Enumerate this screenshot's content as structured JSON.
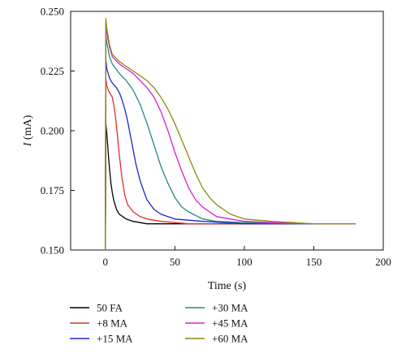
{
  "chart_data": {
    "type": "line",
    "xlabel": "Time (s)",
    "ylabel_italic": "I",
    "ylabel_unit": " (mA)",
    "xlim": [
      -25,
      200
    ],
    "ylim": [
      0.15,
      0.25
    ],
    "x_ticks": [
      0,
      50,
      100,
      150,
      200
    ],
    "y_ticks": [
      0.15,
      0.175,
      0.2,
      0.225,
      0.25
    ],
    "x_tick_labels": [
      "0",
      "50",
      "100",
      "150",
      "200"
    ],
    "y_tick_labels": [
      "0.150",
      "0.175",
      "0.200",
      "0.225",
      "0.250"
    ],
    "grid": false,
    "legend_position": "below plot",
    "series": [
      {
        "name": "50 FA",
        "color": "#000000",
        "x": [
          0,
          0.3,
          1,
          2,
          3,
          4,
          5,
          6,
          8,
          10,
          15,
          20,
          30,
          50,
          80,
          120,
          160
        ],
        "y": [
          0.15,
          0.203,
          0.199,
          0.191,
          0.184,
          0.178,
          0.174,
          0.171,
          0.167,
          0.165,
          0.163,
          0.162,
          0.161,
          0.161,
          0.161,
          0.161,
          0.161
        ]
      },
      {
        "name": "+8 MA",
        "color": "#e0302a",
        "x": [
          0,
          0.3,
          1,
          2,
          3,
          4,
          5,
          6,
          7,
          8,
          9,
          10,
          11,
          12,
          14,
          16,
          20,
          25,
          30,
          40,
          60,
          100,
          160
        ],
        "y": [
          0.15,
          0.222,
          0.219,
          0.217,
          0.216,
          0.215,
          0.214,
          0.211,
          0.207,
          0.202,
          0.196,
          0.19,
          0.185,
          0.18,
          0.173,
          0.169,
          0.166,
          0.164,
          0.163,
          0.162,
          0.161,
          0.161,
          0.161
        ]
      },
      {
        "name": "+15 MA",
        "color": "#2222cc",
        "x": [
          0,
          0.3,
          1,
          3,
          5,
          8,
          10,
          12,
          14,
          16,
          18,
          20,
          22,
          25,
          28,
          30,
          35,
          40,
          50,
          70,
          100,
          160
        ],
        "y": [
          0.15,
          0.23,
          0.226,
          0.222,
          0.22,
          0.218,
          0.216,
          0.213,
          0.209,
          0.204,
          0.198,
          0.192,
          0.186,
          0.179,
          0.174,
          0.171,
          0.167,
          0.165,
          0.163,
          0.162,
          0.161,
          0.161
        ]
      },
      {
        "name": "+30 MA",
        "color": "#1f8a80",
        "x": [
          0,
          0.3,
          1,
          3,
          5,
          10,
          15,
          20,
          25,
          30,
          35,
          40,
          45,
          50,
          55,
          60,
          70,
          80,
          100,
          140,
          180
        ],
        "y": [
          0.15,
          0.24,
          0.237,
          0.231,
          0.228,
          0.224,
          0.221,
          0.217,
          0.211,
          0.203,
          0.194,
          0.185,
          0.178,
          0.172,
          0.168,
          0.166,
          0.163,
          0.162,
          0.1615,
          0.161,
          0.161
        ]
      },
      {
        "name": "+45 MA",
        "color": "#d61fd6",
        "x": [
          0,
          0.3,
          1,
          3,
          5,
          10,
          15,
          20,
          25,
          30,
          35,
          40,
          45,
          50,
          55,
          60,
          65,
          70,
          75,
          80,
          90,
          100,
          120,
          150,
          180
        ],
        "y": [
          0.15,
          0.245,
          0.241,
          0.235,
          0.231,
          0.228,
          0.226,
          0.224,
          0.221,
          0.218,
          0.214,
          0.208,
          0.2,
          0.191,
          0.183,
          0.176,
          0.171,
          0.168,
          0.166,
          0.164,
          0.163,
          0.162,
          0.1615,
          0.161,
          0.161
        ]
      },
      {
        "name": "+60 MA",
        "color": "#8c8c10",
        "x": [
          0,
          0.3,
          1,
          3,
          5,
          10,
          15,
          20,
          25,
          30,
          35,
          40,
          45,
          50,
          55,
          60,
          65,
          70,
          75,
          80,
          85,
          90,
          100,
          120,
          150,
          180
        ],
        "y": [
          0.15,
          0.247,
          0.243,
          0.236,
          0.232,
          0.229,
          0.227,
          0.225,
          0.223,
          0.221,
          0.218,
          0.214,
          0.209,
          0.203,
          0.196,
          0.189,
          0.182,
          0.176,
          0.172,
          0.169,
          0.167,
          0.165,
          0.163,
          0.162,
          0.161,
          0.161
        ]
      }
    ]
  }
}
